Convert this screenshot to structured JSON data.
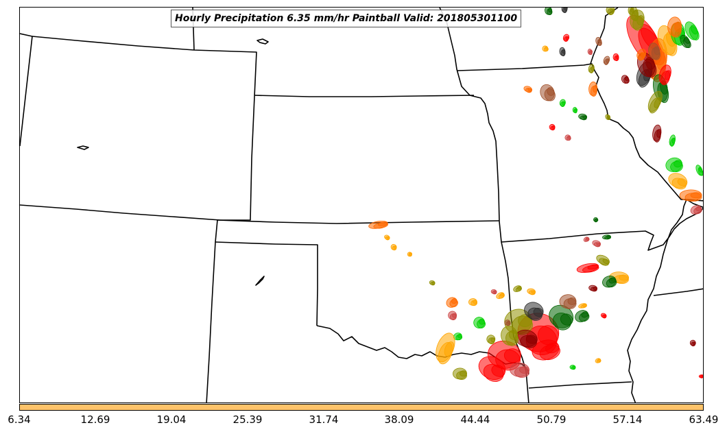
{
  "map": {
    "title": "Hourly Precipitation 6.35 mm/hr Paintball Valid: 201805301100",
    "colorbar": {
      "color": "#fdc36a",
      "ticks": [
        "6.34",
        "12.69",
        "19.04",
        "25.39",
        "31.74",
        "38.09",
        "44.44",
        "50.79",
        "57.14",
        "63.49"
      ]
    },
    "member_colors": [
      "#ff0000",
      "#ff6a00",
      "#ffa500",
      "#00d000",
      "#8b0000",
      "#8f8f00",
      "#006400",
      "#2f2f2f",
      "#a0522d",
      "#cc4444"
    ]
  }
}
